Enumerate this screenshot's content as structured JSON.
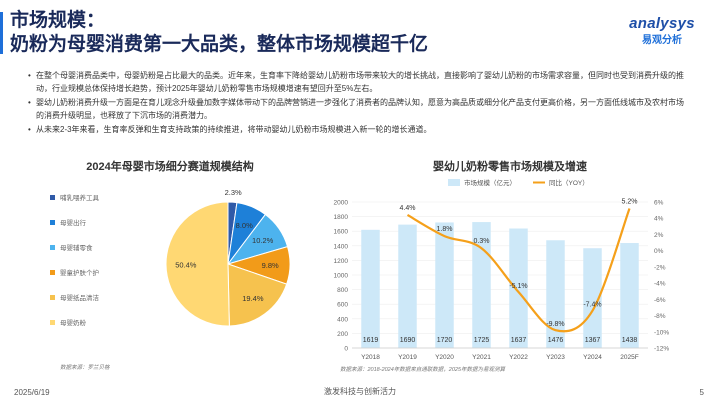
{
  "header": {
    "title_line1": "市场规模：",
    "title_line2": "奶粉为母婴消费第一大品类，整体市场规模超千亿"
  },
  "logo": {
    "top": "analysys",
    "bottom": "易观分析"
  },
  "bullets": [
    "在整个母婴消费品类中，母婴奶粉是占比最大的品类。近年来，生育率下降给婴幼儿奶粉市场带来较大的增长挑战，直接影响了婴幼儿奶粉的市场需求容量，但同时也受到消费升级的推动，行业规模总体保持增长趋势，预计2025年婴幼儿奶粉零售市场规模增速有望回升至5%左右。",
    "婴幼儿奶粉消费升级一方面是在育儿观念升级叠加数字媒体带动下的品牌营销进一步强化了消费者的品牌认知，愿意为高品质或细分化产品支付更高价格，另一方面低线城市及农村市场的消费升级明显，也释放了下沉市场的消费潜力。",
    "从未来2-3年来看，生育率反弹和生育支持政策的持续推进，将带动婴幼儿奶粉市场规模进入新一轮的增长通道。"
  ],
  "left_chart": {
    "source": "数据来源：罗兰贝格"
  },
  "right_chart": {
    "source": "数据来源：2018-2024年数据来自通联数据，2025年数据为易观测算"
  },
  "chart_data": [
    {
      "type": "pie",
      "title": "2024年母婴市场细分赛道规模结构",
      "categories": [
        "哺乳喂养工具",
        "母婴出行",
        "母婴辅零食",
        "婴童护肤个护",
        "母婴纸品清洁",
        "母婴奶粉"
      ],
      "values": [
        2.3,
        8.0,
        10.2,
        9.8,
        19.4,
        50.4
      ],
      "labels": [
        "2.3%",
        "8.0%",
        "10.2%",
        "9.8%",
        "19.4%",
        "50.4%"
      ],
      "colors": [
        "#2f5aa8",
        "#1e80d8",
        "#4db3ee",
        "#f29b19",
        "#f6c24e",
        "#ffd873"
      ],
      "legend": "left"
    },
    {
      "type": "bar",
      "title": "婴幼儿奶粉零售市场规模及增速",
      "categories": [
        "Y2018",
        "Y2019",
        "Y2020",
        "Y2021",
        "Y2022",
        "Y2023",
        "Y2024",
        "2025F"
      ],
      "series": [
        {
          "name": "市场规模（亿元）",
          "type": "bar",
          "axis": "left",
          "values": [
            1619,
            1690,
            1720,
            1725,
            1637,
            1476,
            1367,
            1438
          ],
          "labels": [
            "1619",
            "1690",
            "1720",
            "1725",
            "1637",
            "1476",
            "1367",
            "1438"
          ]
        },
        {
          "name": "同比（YOY）",
          "type": "line",
          "axis": "right",
          "values": [
            null,
            4.4,
            1.8,
            0.3,
            -5.1,
            -9.8,
            -7.4,
            5.2
          ],
          "labels": [
            "",
            "4.4%",
            "1.8%",
            "0.3%",
            "-5.1%",
            "-9.8%",
            "-7.4%",
            "5.2%"
          ]
        }
      ],
      "ylim": [
        0,
        2000
      ],
      "yticks": [
        "0",
        "200",
        "400",
        "600",
        "800",
        "1000",
        "1200",
        "1400",
        "1600",
        "1800",
        "2000"
      ],
      "y2lim": [
        -12,
        6
      ],
      "y2ticks": [
        "6%",
        "4%",
        "2%",
        "0%",
        "-2%",
        "-4%",
        "-6%",
        "-8%",
        "-10%",
        "-12%"
      ],
      "colors": {
        "bar": "#cde8f8",
        "line": "#f5a01a"
      },
      "legend": "top",
      "grid": true
    }
  ],
  "footer": {
    "date": "2025/6/19",
    "slogan": "激发科技与创新活力",
    "page": "5"
  }
}
